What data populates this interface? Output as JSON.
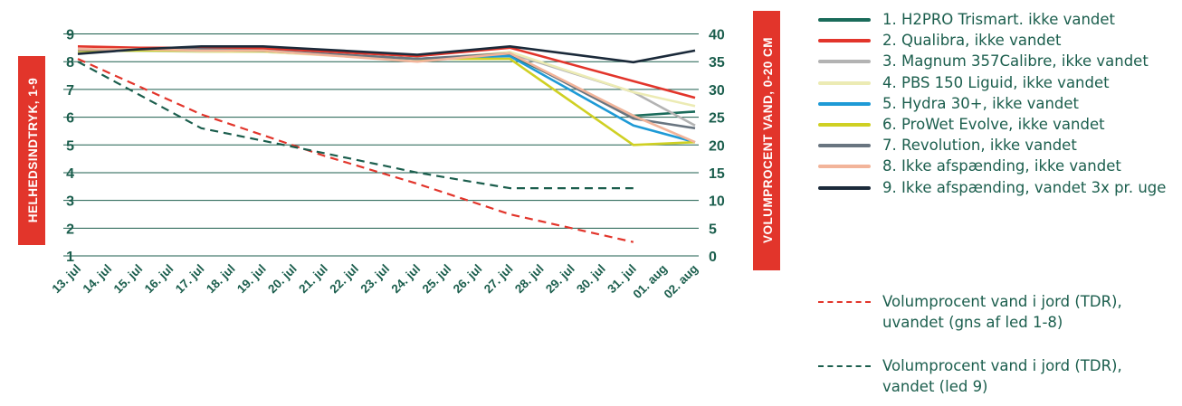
{
  "chart_data": {
    "type": "line",
    "categories": [
      "13. jul",
      "14. jul",
      "15. jul",
      "16. jul",
      "17. jul",
      "18. jul",
      "19. jul",
      "20. jul",
      "21. jul",
      "22. jul",
      "23. jul",
      "24. jul",
      "25. jul",
      "26. jul",
      "27. jul",
      "28. jul",
      "29. jul",
      "30. jul",
      "31. jul",
      "01. aug",
      "02. aug"
    ],
    "y_left": {
      "label": "HELHEDSINDTRYK, 1-9",
      "ticks": [
        "1",
        "2",
        "3",
        "4",
        "5",
        "6",
        "7",
        "8",
        "9"
      ],
      "range": [
        1,
        9
      ]
    },
    "y_right": {
      "label": "VOLUMPROCENT VAND, 0-20 CM",
      "ticks": [
        "0",
        "5",
        "10",
        "15",
        "20",
        "25",
        "30",
        "35",
        "40"
      ],
      "range": [
        0,
        40
      ]
    },
    "grid": true,
    "legend_position": "right",
    "series": [
      {
        "name": "1. H2PRO Trismart. ikke vandet",
        "color": "#1a6b5a",
        "axis": "left",
        "style": "solid",
        "points": [
          [
            0,
            8.4
          ],
          [
            2,
            8.45
          ],
          [
            4,
            8.42
          ],
          [
            6,
            8.4
          ],
          [
            11,
            8.1
          ],
          [
            14,
            8.25
          ],
          [
            18,
            6.05
          ],
          [
            20,
            6.2
          ]
        ]
      },
      {
        "name": "2. Qualibra, ikke vandet",
        "color": "#e2352b",
        "axis": "left",
        "style": "solid",
        "points": [
          [
            0,
            8.55
          ],
          [
            2,
            8.5
          ],
          [
            4,
            8.5
          ],
          [
            6,
            8.48
          ],
          [
            11,
            8.2
          ],
          [
            14,
            8.5
          ],
          [
            18,
            7.3
          ],
          [
            20,
            6.7
          ]
        ]
      },
      {
        "name": "3. Magnum 357Calibre, ikke vandet",
        "color": "#b3b3b3",
        "axis": "left",
        "style": "solid",
        "points": [
          [
            0,
            8.45
          ],
          [
            2,
            8.42
          ],
          [
            4,
            8.38
          ],
          [
            6,
            8.38
          ],
          [
            11,
            8.05
          ],
          [
            14,
            8.3
          ],
          [
            18,
            6.9
          ],
          [
            20,
            5.7
          ]
        ]
      },
      {
        "name": "4. PBS 150 Liguid, ikke vandet",
        "color": "#ecebb4",
        "axis": "left",
        "style": "solid",
        "points": [
          [
            0,
            8.42
          ],
          [
            2,
            8.4
          ],
          [
            4,
            8.35
          ],
          [
            6,
            8.35
          ],
          [
            11,
            8.05
          ],
          [
            14,
            8.35
          ],
          [
            18,
            6.9
          ],
          [
            20,
            6.4
          ]
        ]
      },
      {
        "name": "5. Hydra 30+, ikke vandet",
        "color": "#1e9ad6",
        "axis": "left",
        "style": "solid",
        "points": [
          [
            0,
            8.4
          ],
          [
            2,
            8.4
          ],
          [
            4,
            8.4
          ],
          [
            6,
            8.38
          ],
          [
            11,
            8.1
          ],
          [
            14,
            8.2
          ],
          [
            18,
            5.7
          ],
          [
            20,
            5.1
          ]
        ]
      },
      {
        "name": "6. ProWet Evolve, ikke vandet",
        "color": "#cfd023",
        "axis": "left",
        "style": "solid",
        "points": [
          [
            0,
            8.38
          ],
          [
            2,
            8.4
          ],
          [
            4,
            8.4
          ],
          [
            6,
            8.38
          ],
          [
            11,
            8.1
          ],
          [
            14,
            8.1
          ],
          [
            18,
            5.0
          ],
          [
            20,
            5.1
          ]
        ]
      },
      {
        "name": "7. Revolution, ikke vandet",
        "color": "#697580",
        "axis": "left",
        "style": "solid",
        "points": [
          [
            0,
            8.42
          ],
          [
            2,
            8.45
          ],
          [
            4,
            8.45
          ],
          [
            6,
            8.4
          ],
          [
            11,
            8.1
          ],
          [
            14,
            8.3
          ],
          [
            18,
            5.95
          ],
          [
            20,
            5.6
          ]
        ]
      },
      {
        "name": "8. Ikke afspænding, ikke vandet",
        "color": "#f2b49a",
        "axis": "left",
        "style": "solid",
        "points": [
          [
            0,
            8.45
          ],
          [
            2,
            8.45
          ],
          [
            4,
            8.4
          ],
          [
            6,
            8.4
          ],
          [
            11,
            8.0
          ],
          [
            14,
            8.3
          ],
          [
            18,
            6.05
          ],
          [
            20,
            5.1
          ]
        ]
      },
      {
        "name": "9. Ikke afspænding, vandet 3x pr. uge",
        "color": "#1b2a3a",
        "axis": "left",
        "style": "solid",
        "points": [
          [
            0,
            8.28
          ],
          [
            2,
            8.45
          ],
          [
            4,
            8.55
          ],
          [
            6,
            8.55
          ],
          [
            11,
            8.25
          ],
          [
            14,
            8.55
          ],
          [
            18,
            7.98
          ],
          [
            20,
            8.4
          ]
        ]
      },
      {
        "name": "Volumprocent vand i jord (TDR), uvandet (gns af led 1-8)",
        "color": "#e2352b",
        "axis": "right",
        "style": "dashed",
        "points": [
          [
            0,
            35.5
          ],
          [
            4,
            25.5
          ],
          [
            8,
            18.0
          ],
          [
            11,
            13.0
          ],
          [
            14,
            7.5
          ],
          [
            18,
            2.5
          ]
        ]
      },
      {
        "name": "Volumprocent vand i jord (TDR), vandet (led 9)",
        "color": "#1b5e4d",
        "axis": "right",
        "style": "dashed",
        "points": [
          [
            0,
            35.0
          ],
          [
            2,
            29.0
          ],
          [
            4,
            23.0
          ],
          [
            8,
            18.5
          ],
          [
            11,
            15.0
          ],
          [
            14,
            12.2
          ],
          [
            18,
            12.2
          ]
        ]
      }
    ]
  }
}
